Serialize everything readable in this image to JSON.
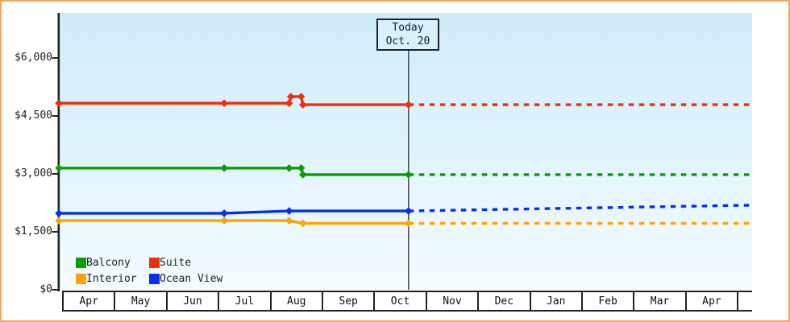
{
  "ui": {
    "today_box": {
      "line1": "Today",
      "line2": "Oct. 20"
    }
  },
  "chart_data": {
    "type": "line",
    "title": "",
    "today": {
      "label": "Today",
      "date": "Oct. 20"
    },
    "y_axis": {
      "tick_labels": [
        "$0",
        "$1,500",
        "$3,000",
        "$4,500",
        "$6,000"
      ],
      "tick_values": [
        0,
        1500,
        3000,
        4500,
        6000
      ],
      "ylim": [
        0,
        7170
      ],
      "grid": false
    },
    "x_axis": {
      "month_labels": [
        "Apr",
        "May",
        "Jun",
        "Jul",
        "Aug",
        "Sep",
        "Oct",
        "Nov",
        "Dec",
        "Jan",
        "Feb",
        "Mar",
        "Apr"
      ]
    },
    "legend": [
      {
        "label": "Balcony",
        "color": "#089e08"
      },
      {
        "label": "Suite",
        "color": "#f32d08"
      },
      {
        "label": "Interior",
        "color": "#ffa303"
      },
      {
        "label": "Ocean View",
        "color": "#0530ee"
      }
    ],
    "series": [
      {
        "name": "Suite",
        "color": "#f32d08",
        "history": [
          {
            "date": "Apr 1",
            "price": 4830
          },
          {
            "date": "Jul 5",
            "price": 4830
          },
          {
            "date": "Aug 12",
            "price": 4830
          },
          {
            "date": "Aug 13",
            "price": 5000
          },
          {
            "date": "Aug 19",
            "price": 5000
          },
          {
            "date": "Aug 20",
            "price": 4790
          },
          {
            "date": "Oct 20",
            "price": 4790
          }
        ],
        "forecast_end_value": 4790
      },
      {
        "name": "Balcony",
        "color": "#089e08",
        "history": [
          {
            "date": "Apr 1",
            "price": 3150
          },
          {
            "date": "Jul 5",
            "price": 3150
          },
          {
            "date": "Aug 12",
            "price": 3150
          },
          {
            "date": "Aug 19",
            "price": 3150
          },
          {
            "date": "Aug 20",
            "price": 2980
          },
          {
            "date": "Oct 20",
            "price": 2980
          }
        ],
        "forecast_end_value": 2980
      },
      {
        "name": "Interior",
        "color": "#ffa303",
        "history": [
          {
            "date": "Apr 1",
            "price": 1790
          },
          {
            "date": "Jul 5",
            "price": 1790
          },
          {
            "date": "Aug 12",
            "price": 1790
          },
          {
            "date": "Aug 20",
            "price": 1720
          },
          {
            "date": "Oct 20",
            "price": 1720
          }
        ],
        "forecast_end_value": 1720
      },
      {
        "name": "Ocean View",
        "color": "#0530ee",
        "history": [
          {
            "date": "Apr 1",
            "price": 1980
          },
          {
            "date": "Jul 5",
            "price": 1980
          },
          {
            "date": "Aug 12",
            "price": 2040
          },
          {
            "date": "Oct 20",
            "price": 2040
          }
        ],
        "forecast_end_value": 2190
      }
    ]
  }
}
